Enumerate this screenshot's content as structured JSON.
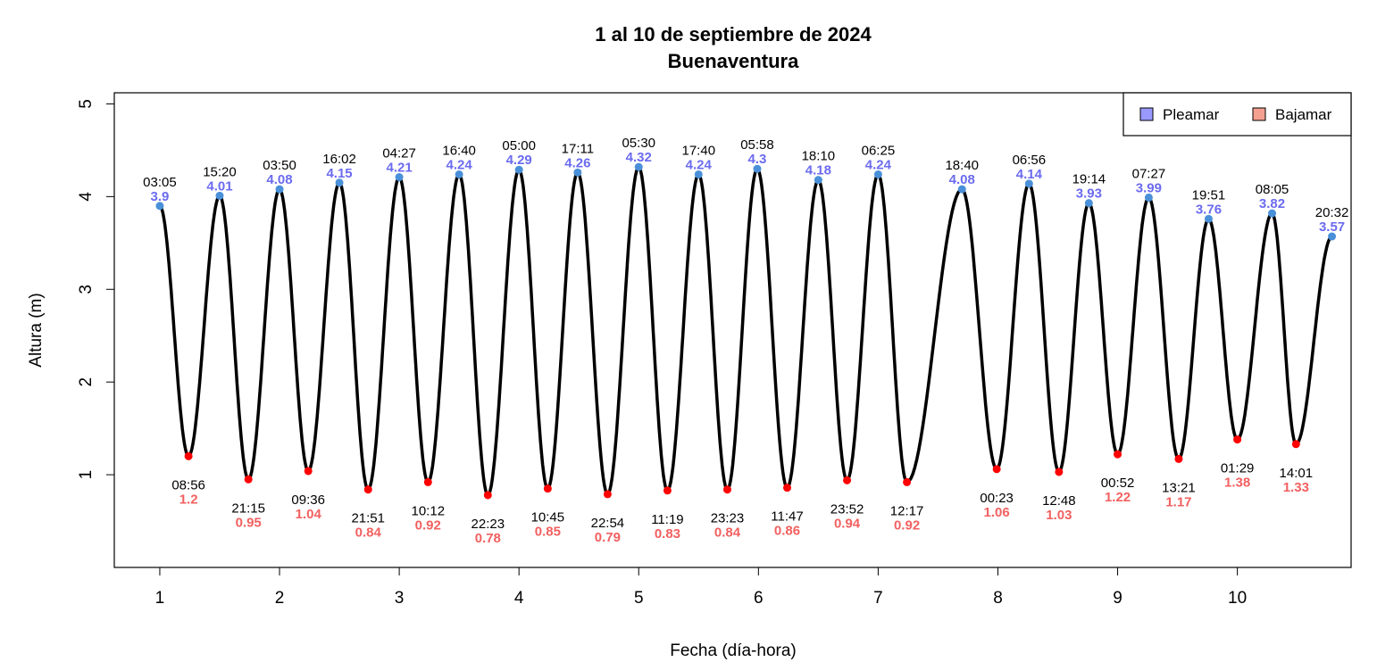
{
  "chart_data": {
    "type": "line",
    "title": "1 al 10 de septiembre de 2024",
    "subtitle": "Buenaventura",
    "xlabel": "Fecha (día-hora)",
    "ylabel": "Altura (m)",
    "xlim": [
      0.62,
      10.95
    ],
    "ylim": [
      0,
      5.12
    ],
    "x_ticks": [
      1,
      2,
      3,
      4,
      5,
      6,
      7,
      8,
      9,
      10
    ],
    "y_ticks": [
      1,
      2,
      3,
      4,
      5
    ],
    "grid": false,
    "legend": {
      "position": "top-right",
      "items": [
        "Pleamar",
        "Bajamar"
      ]
    },
    "colors": {
      "curve": "#000000",
      "high_point": "#4a90d9",
      "low_point": "#ff0000",
      "high_text": "#6b6bf0",
      "low_text": "#f26060",
      "legend_high": "#9999ff",
      "legend_low": "#f4a090"
    },
    "series": [
      {
        "name": "Pleamar",
        "points": [
          {
            "time": "03:05",
            "x": 1.0,
            "value": 3.9
          },
          {
            "time": "15:20",
            "x": 1.5,
            "value": 4.01
          },
          {
            "time": "03:50",
            "x": 2.0,
            "value": 4.08
          },
          {
            "time": "16:02",
            "x": 2.5,
            "value": 4.15
          },
          {
            "time": "04:27",
            "x": 3.0,
            "value": 4.21
          },
          {
            "time": "16:40",
            "x": 3.5,
            "value": 4.24
          },
          {
            "time": "05:00",
            "x": 4.0,
            "value": 4.29
          },
          {
            "time": "17:11",
            "x": 4.49,
            "value": 4.26
          },
          {
            "time": "05:30",
            "x": 5.0,
            "value": 4.32
          },
          {
            "time": "17:40",
            "x": 5.5,
            "value": 4.24
          },
          {
            "time": "05:58",
            "x": 5.99,
            "value": 4.3
          },
          {
            "time": "18:10",
            "x": 6.5,
            "value": 4.18
          },
          {
            "time": "06:25",
            "x": 7.0,
            "value": 4.24
          },
          {
            "time": "18:40",
            "x": 7.7,
            "value": 4.08
          },
          {
            "time": "06:56",
            "x": 8.26,
            "value": 4.14
          },
          {
            "time": "19:14",
            "x": 8.76,
            "value": 3.93
          },
          {
            "time": "07:27",
            "x": 9.26,
            "value": 3.99
          },
          {
            "time": "19:51",
            "x": 9.76,
            "value": 3.76
          },
          {
            "time": "08:05",
            "x": 10.29,
            "value": 3.82
          },
          {
            "time": "20:32",
            "x": 10.79,
            "value": 3.57
          }
        ]
      },
      {
        "name": "Bajamar",
        "points": [
          {
            "time": "08:56",
            "x": 1.24,
            "value": 1.2
          },
          {
            "time": "21:15",
            "x": 1.74,
            "value": 0.95
          },
          {
            "time": "09:36",
            "x": 2.24,
            "value": 1.04
          },
          {
            "time": "21:51",
            "x": 2.74,
            "value": 0.84
          },
          {
            "time": "10:12",
            "x": 3.24,
            "value": 0.92
          },
          {
            "time": "22:23",
            "x": 3.74,
            "value": 0.78
          },
          {
            "time": "10:45",
            "x": 4.24,
            "value": 0.85
          },
          {
            "time": "22:54",
            "x": 4.74,
            "value": 0.79
          },
          {
            "time": "11:19",
            "x": 5.24,
            "value": 0.83
          },
          {
            "time": "23:23",
            "x": 5.74,
            "value": 0.84
          },
          {
            "time": "11:47",
            "x": 6.24,
            "value": 0.86
          },
          {
            "time": "23:52",
            "x": 6.74,
            "value": 0.94
          },
          {
            "time": "12:17",
            "x": 7.24,
            "value": 0.92
          },
          {
            "time": "00:23",
            "x": 7.99,
            "value": 1.06
          },
          {
            "time": "12:48",
            "x": 8.51,
            "value": 1.03
          },
          {
            "time": "00:52",
            "x": 9.0,
            "value": 1.22
          },
          {
            "time": "13:21",
            "x": 9.51,
            "value": 1.17
          },
          {
            "time": "01:29",
            "x": 10.0,
            "value": 1.38
          },
          {
            "time": "14:01",
            "x": 10.49,
            "value": 1.33
          }
        ]
      }
    ]
  }
}
